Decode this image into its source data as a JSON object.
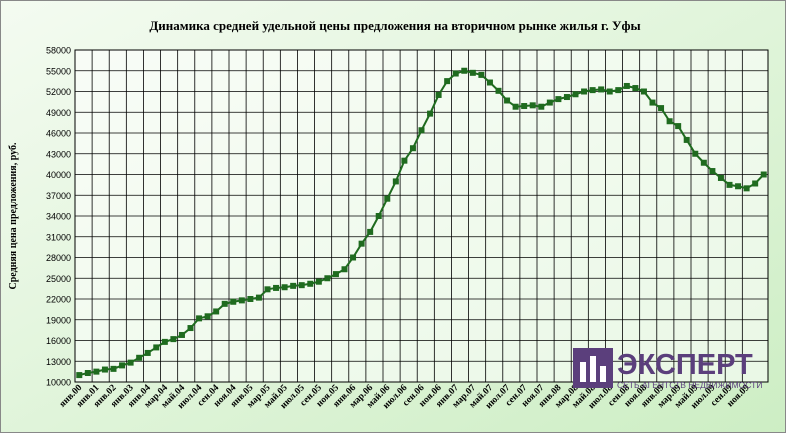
{
  "chart_data": {
    "type": "line",
    "title": "Динамика средней удельной цены предложения на вторичном рынке жилья г. Уфы",
    "ylabel": "Средняя цена предложения, руб.",
    "categories": [
      "янв.00",
      null,
      "янв.01",
      null,
      "янв.02",
      null,
      "янв.03",
      null,
      "янв.04",
      null,
      "мар.04",
      null,
      "май.04",
      null,
      "июл.04",
      null,
      "сен.04",
      null,
      "ноя.04",
      null,
      "янв.05",
      null,
      "мар.05",
      null,
      "май.05",
      null,
      "июл.05",
      null,
      "сен.05",
      null,
      "ноя.05",
      null,
      "янв.06",
      null,
      "мар.06",
      null,
      "май.06",
      null,
      "июл.06",
      null,
      "сен.06",
      null,
      "ноя.06",
      null,
      "янв.07",
      null,
      "мар.07",
      null,
      "май.07",
      null,
      "июл.07",
      null,
      "сен.07",
      null,
      "ноя.07",
      null,
      "янв.08",
      null,
      "мар.08",
      null,
      "май.08",
      null,
      "июл.08",
      null,
      "сен.08",
      null,
      "ноя.08",
      null,
      "янв.09",
      null,
      "мар.09",
      null,
      "май.09",
      null,
      "июл.09",
      null,
      "сен.09",
      null,
      "ноя.09",
      null,
      null
    ],
    "series": [
      {
        "name": "Средняя цена",
        "color": "#1f6b1f",
        "values": [
          11000,
          11300,
          11500,
          11800,
          11900,
          12400,
          12800,
          13500,
          14200,
          15000,
          15800,
          16200,
          16800,
          17800,
          19200,
          19500,
          20200,
          21300,
          21600,
          21800,
          22000,
          22200,
          23400,
          23600,
          23700,
          23900,
          24000,
          24200,
          24500,
          25000,
          25600,
          26300,
          28000,
          30000,
          31700,
          34000,
          36500,
          39000,
          42000,
          43800,
          46400,
          48800,
          51500,
          53500,
          54600,
          55000,
          54700,
          54400,
          53300,
          52100,
          50700,
          49800,
          49900,
          50000,
          49800,
          50400,
          50900,
          51200,
          51600,
          52000,
          52200,
          52300,
          52000,
          52200,
          52800,
          52500,
          52000,
          50400,
          49600,
          47700,
          47000,
          45000,
          43000,
          41700,
          40500,
          39500,
          38500,
          38300,
          38000,
          38700,
          40000
        ]
      }
    ],
    "ylim": [
      10000,
      58000
    ],
    "yticks": [
      10000,
      13000,
      16000,
      19000,
      22000,
      25000,
      28000,
      31000,
      34000,
      37000,
      40000,
      43000,
      46000,
      49000,
      52000,
      55000,
      58000
    ],
    "grid": true,
    "logo": {
      "name": "ЭКСПЕРТ",
      "tagline": "СЕТЬ АГЕНТСТВ НЕДВИЖИМОСТИ"
    }
  }
}
